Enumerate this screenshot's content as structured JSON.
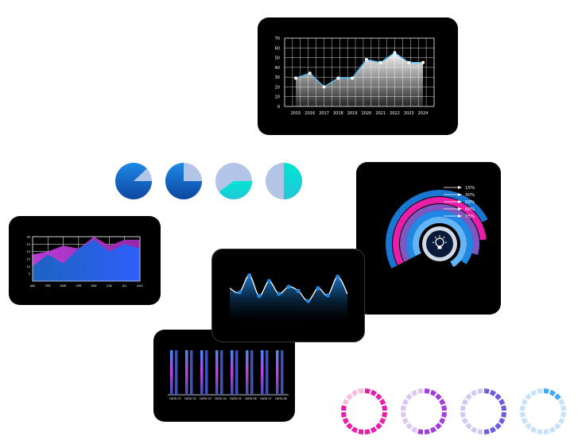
{
  "colors": {
    "panel": "#000000",
    "blue": "#1a73e8",
    "lightblue": "#b3c5e6",
    "cyan": "#00e5d0",
    "magenta": "#e91ea8",
    "purple": "#a040d8",
    "violet": "#6a5de0",
    "sky": "#3fa9f5"
  },
  "chart_data": [
    {
      "id": "area-years",
      "type": "area",
      "x": [
        "2015",
        "2016",
        "2017",
        "2018",
        "2019",
        "2020",
        "2021",
        "2022",
        "2023",
        "2024"
      ],
      "values": [
        29,
        34,
        20,
        29,
        29,
        48,
        45,
        55,
        45,
        45
      ],
      "yticks": [
        "0",
        "10",
        "20",
        "30",
        "40",
        "50",
        "60",
        "70"
      ],
      "ylim": [
        0,
        70
      ],
      "grid": true
    },
    {
      "id": "pies",
      "type": "pie",
      "slices": [
        {
          "value": 88,
          "rest": 12,
          "color": "blue"
        },
        {
          "value": 75,
          "rest": 25,
          "color": "blue"
        },
        {
          "value": 40,
          "rest": 60,
          "color": "cyan"
        },
        {
          "value": 50,
          "rest": 50,
          "color": "cyan"
        }
      ]
    },
    {
      "id": "area-months",
      "type": "area",
      "x": [
        "JAN",
        "FEB",
        "MAR",
        "APR",
        "MAY",
        "JUN",
        "JUL",
        "AUG"
      ],
      "yticks": [
        "5",
        "10",
        "15",
        "20",
        "25",
        "30"
      ],
      "ylim": [
        0,
        30
      ],
      "series": [
        {
          "values": [
            18,
            20,
            24,
            22,
            30,
            24,
            28,
            28
          ],
          "color": "purple"
        },
        {
          "values": [
            10,
            18,
            12,
            22,
            28,
            20,
            25,
            22
          ],
          "color": "blue"
        }
      ],
      "grid": true
    },
    {
      "id": "wave",
      "type": "line",
      "values": [
        48,
        42,
        66,
        37,
        58,
        40,
        50,
        44,
        30,
        48,
        38,
        64,
        40
      ],
      "markers": true
    },
    {
      "id": "radial",
      "type": "radial-bar",
      "values": [
        15,
        30,
        50,
        60,
        75
      ],
      "labels": [
        "15%",
        "30%",
        "50%",
        "60%",
        "75%"
      ],
      "center_icon": "lightbulb-icon"
    },
    {
      "id": "bars",
      "type": "bar",
      "categories": [
        "DATA 01",
        "DATA 02",
        "DATA 03",
        "DATA 04",
        "DATA 05",
        "DATA 06",
        "DATA 07",
        "DATA 08"
      ],
      "values": [
        55,
        62,
        48,
        70,
        58,
        66,
        52,
        74
      ]
    },
    {
      "id": "rings",
      "type": "donut",
      "rings": [
        {
          "value": 80,
          "label": "80%",
          "color": "magenta"
        },
        {
          "value": 55,
          "label": "55%",
          "color": "purple"
        },
        {
          "value": 50,
          "label": "50%",
          "color": "violet"
        },
        {
          "value": 15,
          "label": "15%",
          "color": "sky"
        }
      ]
    }
  ]
}
